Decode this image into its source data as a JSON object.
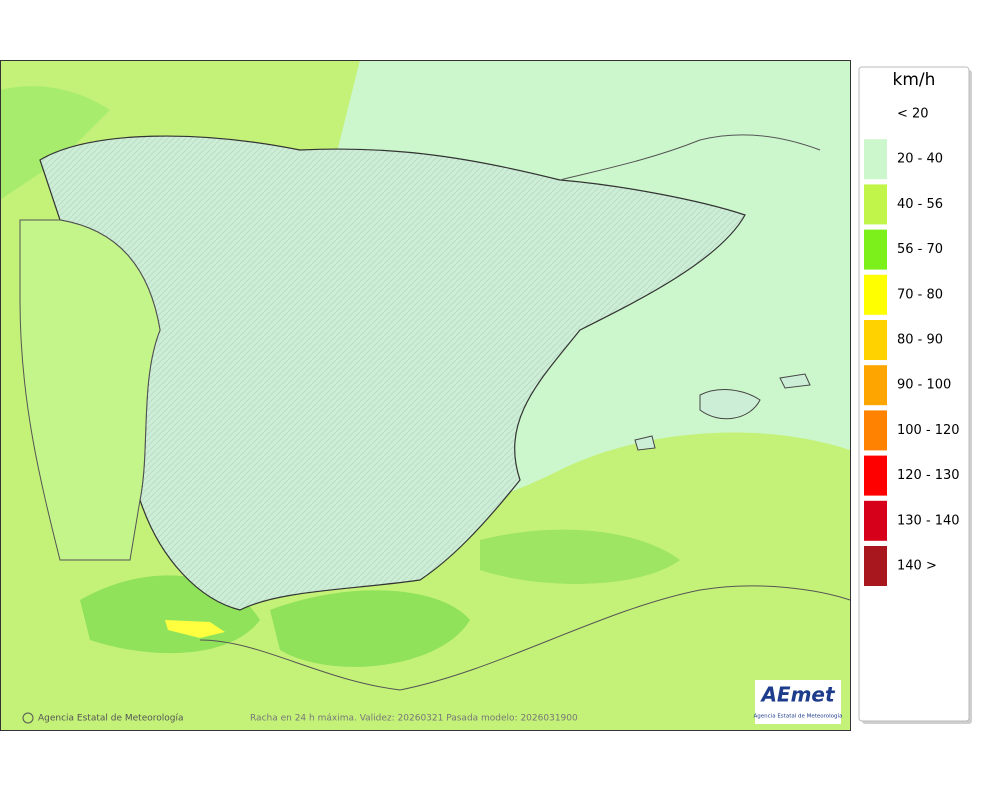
{
  "legend": {
    "title": "km/h",
    "items": [
      {
        "label": "< 20",
        "color": null
      },
      {
        "label": "20 - 40",
        "color": "#ccf7cc"
      },
      {
        "label": "40 - 56",
        "color": "#c1f54a"
      },
      {
        "label": "56 - 70",
        "color": "#7cf01a"
      },
      {
        "label": "70 - 80",
        "color": "#ffff00"
      },
      {
        "label": "80 - 90",
        "color": "#ffd200"
      },
      {
        "label": "90 - 100",
        "color": "#ffa500"
      },
      {
        "label": "100 - 120",
        "color": "#ff8200"
      },
      {
        "label": "120 - 130",
        "color": "#ff0000"
      },
      {
        "label": "130 - 140",
        "color": "#d7001a"
      },
      {
        "label": "140 >",
        "color": "#a8161e"
      }
    ]
  },
  "footer": {
    "credit": "Agencia Estatal de Meteorología",
    "caption": "Racha en 24 h máxima. Validez: 20260321 Pasada modelo: 2026031900"
  },
  "logo": {
    "text": "AEmet",
    "subtitle": "Agencia Estatal de Meteorología"
  }
}
